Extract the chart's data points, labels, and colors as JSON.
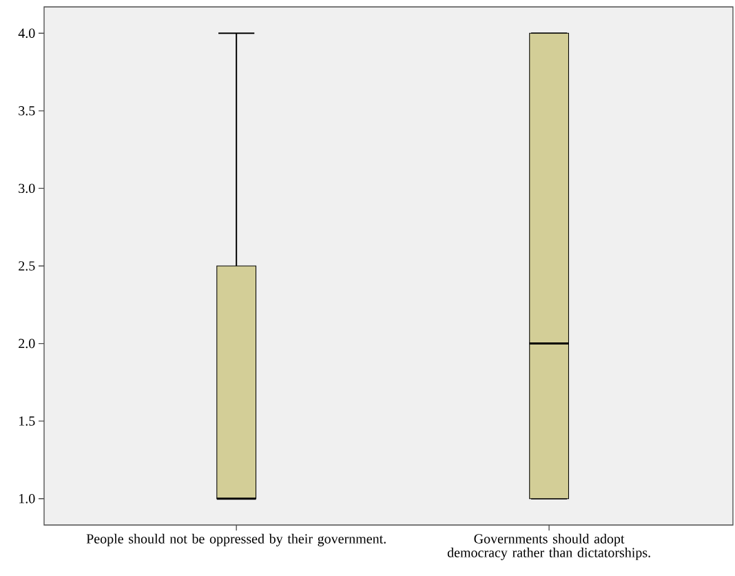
{
  "chart_data": {
    "type": "box",
    "categories": [
      "People should not be oppressed by their government.",
      "Governments should adopt democracy rather than dictatorships."
    ],
    "boxes": [
      {
        "low": 1,
        "q1": 1,
        "median": 1,
        "q3": 2.5,
        "high": 4
      },
      {
        "low": 1,
        "q1": 1,
        "median": 2,
        "q3": 4,
        "high": 4
      }
    ],
    "color": "#d3ce97",
    "ylim": [
      0.83,
      4.17
    ],
    "yticks": [
      {
        "value": 1,
        "label": "1.0"
      },
      {
        "value": 1.5,
        "label": "1.5"
      },
      {
        "value": 2,
        "label": "2.0"
      },
      {
        "value": 2.5,
        "label": "2.5"
      },
      {
        "value": 3,
        "label": "3.0"
      },
      {
        "value": 3.5,
        "label": "3.5"
      },
      {
        "value": 4,
        "label": "4.0"
      }
    ]
  }
}
